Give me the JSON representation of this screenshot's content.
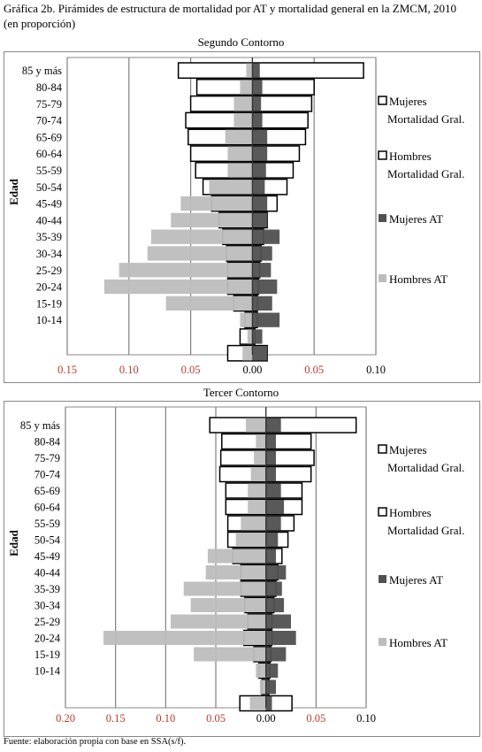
{
  "title_line1": "Gráfica 2b. Pirámides de estructura de mortalidad por AT y mortalidad general en la ZMCM, 2010",
  "title_line2": "(en proporción)",
  "source": "Fuente: elaboración propia con base en SSA(s/f).",
  "colors": {
    "mujeres_gral": "#ffffff",
    "hombres_gral": "#ffffff",
    "mujeres_at": "#505050",
    "hombres_at": "#bdbdbd",
    "outline": "#000000",
    "tick_label": "#c0392b",
    "grid": "#808080"
  },
  "chart_data": [
    {
      "type": "bar",
      "title": "Segundo Contorno",
      "ylabel": "Edad",
      "orientation": "horizontal-pyramid",
      "xlim": [
        -0.15,
        0.1
      ],
      "x_ticks": [
        -0.15,
        -0.1,
        -0.05,
        0.0,
        0.05,
        0.1
      ],
      "x_tick_labels": [
        "0.15",
        "0.10",
        "0.05",
        "0.00",
        "0.05",
        "0.10"
      ],
      "categories": [
        "85 y más",
        "80-84",
        "75-79",
        "70-74",
        "65-69",
        "60-64",
        "55-59",
        "50-54",
        "45-49",
        "40-44",
        "35-39",
        "30-34",
        "25-29",
        "20-24",
        "15-19",
        "10-14",
        "",
        ""
      ],
      "legend_position": "right",
      "series": [
        {
          "name": "Mujeres Mortalidad Gral.",
          "side": "right",
          "values": [
            0.09,
            0.05,
            0.048,
            0.045,
            0.043,
            0.038,
            0.033,
            0.028,
            0.02,
            0.012,
            0.009,
            0.007,
            0.006,
            0.005,
            0.004,
            0.004,
            0.002,
            0.012
          ]
        },
        {
          "name": "Hombres Mortalidad Gral.",
          "side": "left",
          "values": [
            0.06,
            0.045,
            0.05,
            0.054,
            0.052,
            0.05,
            0.046,
            0.04,
            0.033,
            0.027,
            0.024,
            0.021,
            0.02,
            0.02,
            0.015,
            0.006,
            0.01,
            0.02
          ]
        },
        {
          "name": "Mujeres AT",
          "side": "right",
          "values": [
            0.006,
            0.008,
            0.007,
            0.008,
            0.012,
            0.012,
            0.011,
            0.01,
            0.012,
            0.012,
            0.022,
            0.016,
            0.015,
            0.02,
            0.016,
            0.022,
            0.008,
            0.012
          ]
        },
        {
          "name": "Hombres AT",
          "side": "left",
          "values": [
            0.005,
            0.01,
            0.015,
            0.015,
            0.022,
            0.02,
            0.02,
            0.035,
            0.058,
            0.066,
            0.082,
            0.085,
            0.108,
            0.12,
            0.07,
            0.01,
            0.004,
            0.008
          ]
        }
      ]
    },
    {
      "type": "bar",
      "title": "Tercer Contorno",
      "ylabel": "Edad",
      "orientation": "horizontal-pyramid",
      "xlim": [
        -0.2,
        0.1
      ],
      "x_ticks": [
        -0.2,
        -0.15,
        -0.1,
        -0.05,
        0.0,
        0.05,
        0.1
      ],
      "x_tick_labels": [
        "0.20",
        "0.15",
        "0.10",
        "0.05",
        "0.00",
        "0.05",
        "0.10"
      ],
      "categories": [
        "85 y más",
        "80-84",
        "75-79",
        "70-74",
        "65-69",
        "60-64",
        "55-59",
        "50-54",
        "45-49",
        "40-44",
        "35-39",
        "30-34",
        "25-29",
        "20-24",
        "15-19",
        "10-14",
        "",
        ""
      ],
      "legend_position": "right",
      "series": [
        {
          "name": "Mujeres Mortalidad Gral.",
          "side": "right",
          "values": [
            0.09,
            0.045,
            0.048,
            0.045,
            0.036,
            0.036,
            0.028,
            0.022,
            0.016,
            0.012,
            0.01,
            0.008,
            0.006,
            0.006,
            0.005,
            0.004,
            0.003,
            0.026
          ]
        },
        {
          "name": "Hombres Mortalidad Gral.",
          "side": "left",
          "values": [
            0.056,
            0.044,
            0.045,
            0.046,
            0.04,
            0.04,
            0.038,
            0.038,
            0.033,
            0.025,
            0.025,
            0.021,
            0.018,
            0.022,
            0.012,
            0.007,
            0.004,
            0.026
          ]
        },
        {
          "name": "Mujeres AT",
          "side": "right",
          "values": [
            0.015,
            0.01,
            0.01,
            0.01,
            0.015,
            0.018,
            0.015,
            0.012,
            0.01,
            0.02,
            0.016,
            0.018,
            0.025,
            0.03,
            0.02,
            0.012,
            0.01,
            0.006
          ]
        },
        {
          "name": "Hombres AT",
          "side": "left",
          "values": [
            0.02,
            0.01,
            0.012,
            0.015,
            0.018,
            0.018,
            0.025,
            0.03,
            0.058,
            0.06,
            0.082,
            0.075,
            0.095,
            0.162,
            0.072,
            0.01,
            0.006,
            0.016
          ]
        }
      ]
    }
  ]
}
